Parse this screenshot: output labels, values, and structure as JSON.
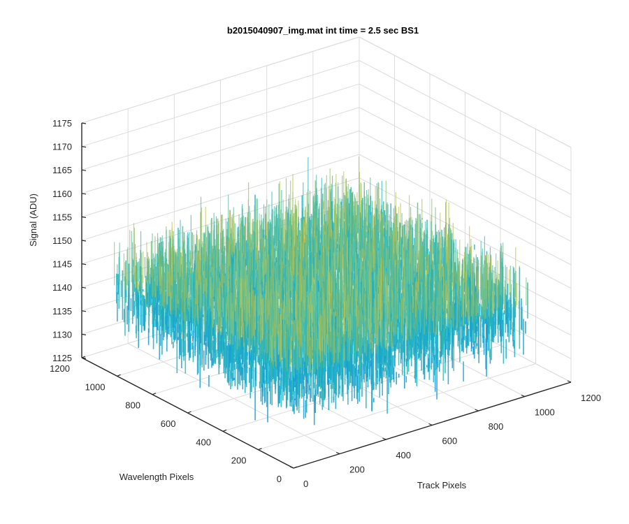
{
  "chart_data": {
    "type": "surface",
    "title": "b2015040907_img.mat int time = 2.5 sec   BS1",
    "xlabel": "Track Pixels",
    "ylabel": "Wavelength Pixels",
    "zlabel": "Signal (ADU)",
    "xlim": [
      0,
      1200
    ],
    "ylim": [
      0,
      1200
    ],
    "zlim": [
      1125,
      1175
    ],
    "xticks": [
      "0",
      "200",
      "400",
      "600",
      "800",
      "1000",
      "1200"
    ],
    "yticks": [
      "0",
      "200",
      "400",
      "600",
      "800",
      "1000",
      "1200"
    ],
    "zticks": [
      "1125",
      "1130",
      "1135",
      "1140",
      "1145",
      "1150",
      "1155",
      "1160",
      "1165",
      "1170",
      "1175"
    ],
    "grid": true,
    "box": true,
    "colormap": "parula",
    "colors": {
      "low": "#0d7fd9",
      "mid": "#1fb5c4",
      "high": "#c8c44a",
      "grid": "#dcdcdc",
      "axis": "#262626"
    },
    "surface_extent": {
      "x": [
        0,
        1024
      ],
      "y": [
        0,
        1024
      ]
    },
    "signal_mean": 1142,
    "signal_range": [
      1127,
      1167
    ]
  }
}
